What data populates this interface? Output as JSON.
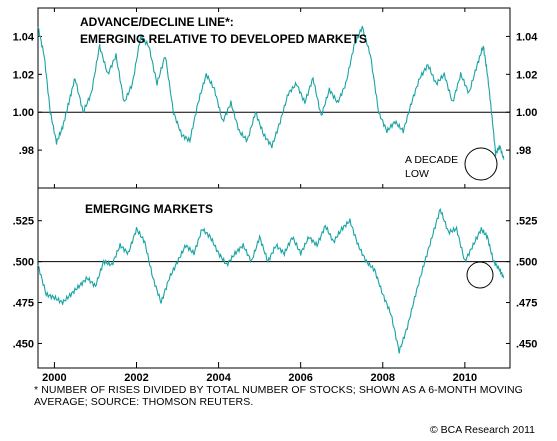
{
  "chart_data": [
    {
      "type": "line",
      "title_line1": "ADVANCE/DECLINE LINE*:",
      "title_line2": "EMERGING RELATIVE TO DEVELOPED MARKETS",
      "ylim": [
        0.96,
        1.055
      ],
      "yticks": [
        0.98,
        1.0,
        1.02,
        1.04
      ],
      "ytick_labels": [
        ".98",
        "1.00",
        "1.02",
        "1.04"
      ],
      "reference_line": 1.0,
      "annotation": [
        "A DECADE",
        "LOW"
      ],
      "series_color": "#1aa3a3",
      "x": [
        1999.6,
        1999.75,
        1999.9,
        2000.05,
        2000.2,
        2000.35,
        2000.5,
        2000.7,
        2000.9,
        2001.1,
        2001.3,
        2001.5,
        2001.7,
        2001.9,
        2002.1,
        2002.3,
        2002.5,
        2002.7,
        2002.9,
        2003.1,
        2003.3,
        2003.5,
        2003.7,
        2003.9,
        2004.1,
        2004.3,
        2004.5,
        2004.7,
        2004.9,
        2005.1,
        2005.3,
        2005.5,
        2005.7,
        2005.9,
        2006.1,
        2006.3,
        2006.5,
        2006.7,
        2006.9,
        2007.1,
        2007.3,
        2007.5,
        2007.7,
        2007.9,
        2008.1,
        2008.3,
        2008.5,
        2008.7,
        2008.9,
        2009.1,
        2009.3,
        2009.5,
        2009.7,
        2009.9,
        2010.1,
        2010.3,
        2010.45,
        2010.55,
        2010.65,
        2010.75,
        2010.85,
        2010.95
      ],
      "values": [
        1.045,
        1.03,
        1.0,
        0.984,
        0.992,
        1.005,
        1.018,
        1.0,
        1.01,
        1.035,
        1.02,
        1.03,
        1.005,
        1.015,
        1.04,
        1.035,
        1.015,
        1.03,
        1.0,
        0.988,
        0.985,
        1.005,
        1.02,
        1.012,
        0.995,
        1.005,
        0.99,
        0.985,
        1.0,
        0.988,
        0.982,
        0.995,
        1.01,
        1.015,
        1.005,
        1.018,
        0.998,
        1.012,
        1.005,
        1.015,
        1.035,
        1.045,
        1.03,
        1.0,
        0.99,
        0.995,
        0.99,
        1.005,
        1.018,
        1.025,
        1.015,
        1.02,
        1.005,
        1.02,
        1.01,
        1.025,
        1.035,
        1.02,
        1.0,
        0.978,
        0.982,
        0.975
      ]
    },
    {
      "type": "line",
      "title": "EMERGING MARKETS",
      "ylim": [
        0.435,
        0.545
      ],
      "yticks": [
        0.45,
        0.475,
        0.5,
        0.525
      ],
      "ytick_labels": [
        ".450",
        ".475",
        ".500",
        ".525"
      ],
      "reference_line": 0.5,
      "series_color": "#1aa3a3",
      "x": [
        1999.6,
        1999.8,
        2000.0,
        2000.2,
        2000.4,
        2000.6,
        2000.8,
        2001.0,
        2001.2,
        2001.4,
        2001.6,
        2001.8,
        2002.0,
        2002.2,
        2002.4,
        2002.6,
        2002.8,
        2003.0,
        2003.2,
        2003.4,
        2003.6,
        2003.8,
        2004.0,
        2004.2,
        2004.4,
        2004.6,
        2004.8,
        2005.0,
        2005.2,
        2005.4,
        2005.6,
        2005.8,
        2006.0,
        2006.2,
        2006.4,
        2006.6,
        2006.8,
        2007.0,
        2007.2,
        2007.4,
        2007.6,
        2007.8,
        2008.0,
        2008.2,
        2008.4,
        2008.6,
        2008.8,
        2009.0,
        2009.2,
        2009.4,
        2009.6,
        2009.8,
        2010.0,
        2010.2,
        2010.4,
        2010.55,
        2010.7,
        2010.85,
        2010.95
      ],
      "values": [
        0.498,
        0.48,
        0.478,
        0.475,
        0.48,
        0.485,
        0.49,
        0.485,
        0.5,
        0.498,
        0.51,
        0.505,
        0.52,
        0.512,
        0.49,
        0.475,
        0.49,
        0.5,
        0.51,
        0.505,
        0.52,
        0.515,
        0.505,
        0.498,
        0.505,
        0.51,
        0.5,
        0.515,
        0.5,
        0.51,
        0.505,
        0.515,
        0.505,
        0.515,
        0.51,
        0.522,
        0.512,
        0.52,
        0.525,
        0.51,
        0.5,
        0.495,
        0.48,
        0.468,
        0.445,
        0.46,
        0.48,
        0.498,
        0.515,
        0.532,
        0.518,
        0.52,
        0.5,
        0.51,
        0.52,
        0.515,
        0.5,
        0.495,
        0.49
      ]
    }
  ],
  "x_axis": {
    "xlim": [
      1999.6,
      2011.1
    ],
    "ticks": [
      2000,
      2002,
      2004,
      2006,
      2008,
      2010
    ],
    "tick_labels": [
      "2000",
      "2002",
      "2004",
      "2006",
      "2008",
      "2010"
    ]
  },
  "footnote": "* NUMBER OF RISES DIVIDED BY TOTAL NUMBER OF STOCKS; SHOWN AS A 6-MONTH MOVING AVERAGE; SOURCE: THOMSON REUTERS.",
  "credit": "© BCA Research 2011"
}
